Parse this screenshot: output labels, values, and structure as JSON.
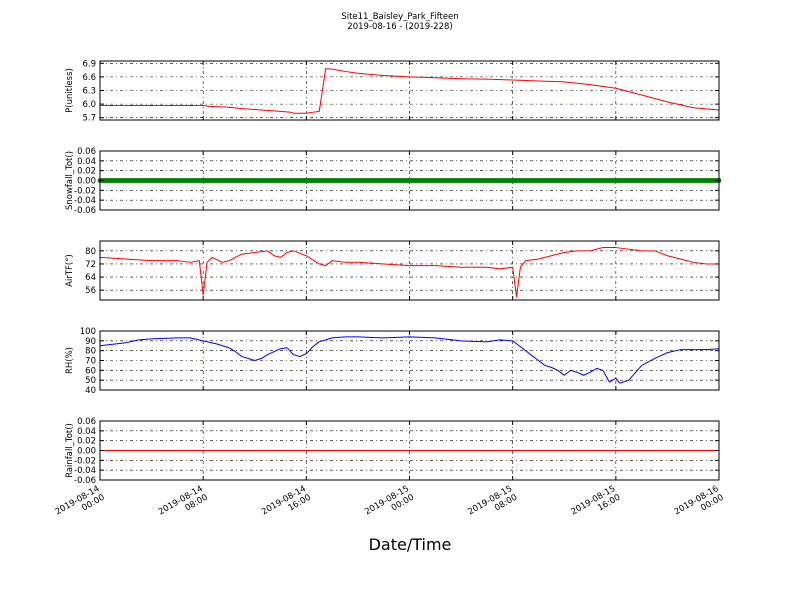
{
  "figure": {
    "title": "Site11_Baisley_Park_Fifteen",
    "subtitle": "2019-08-16 - (2019-228)",
    "xlabel": "Date/Time"
  },
  "chart_data": [
    {
      "type": "line",
      "ylabel": "P(unitless)",
      "ylim": [
        5.65,
        6.95
      ],
      "yticks": [
        "6.9",
        "6.6",
        "6.3",
        "6.0",
        "5.7"
      ],
      "ytick_values": [
        6.9,
        6.6,
        6.3,
        6.0,
        5.7
      ],
      "grid": true,
      "series": [
        {
          "color": "#ff0000",
          "x": [
            0,
            8,
            8.5,
            10,
            11,
            12,
            14,
            14.8,
            15,
            16,
            17,
            17.5,
            18,
            19,
            20,
            22,
            24,
            26,
            28,
            30,
            32,
            34,
            36,
            38,
            40,
            42,
            44,
            46,
            48
          ],
          "y": [
            5.97,
            5.97,
            5.95,
            5.93,
            5.9,
            5.88,
            5.84,
            5.82,
            5.8,
            5.8,
            5.84,
            6.78,
            6.77,
            6.72,
            6.68,
            6.63,
            6.6,
            6.58,
            6.56,
            6.55,
            6.53,
            6.51,
            6.49,
            6.43,
            6.35,
            6.2,
            6.05,
            5.92,
            5.87
          ]
        }
      ]
    },
    {
      "type": "scatter",
      "ylabel": "Snowfall_Tot()",
      "ylim": [
        -0.06,
        0.06
      ],
      "yticks": [
        "0.06",
        "0.04",
        "0.02",
        "0.00",
        "-0.02",
        "-0.04",
        "-0.06"
      ],
      "ytick_values": [
        0.06,
        0.04,
        0.02,
        0.0,
        -0.02,
        -0.04,
        -0.06
      ],
      "grid": true,
      "series": [
        {
          "color": "#008000",
          "x_range": [
            0,
            48
          ],
          "value": 0.0
        }
      ]
    },
    {
      "type": "line",
      "ylabel": "AirTF(°)",
      "ylim": [
        50,
        86
      ],
      "yticks": [
        "80",
        "72",
        "64",
        "56"
      ],
      "ytick_values": [
        80,
        72,
        64,
        56
      ],
      "grid": true,
      "series": [
        {
          "color": "#ff0000",
          "x": [
            0,
            2,
            4,
            6,
            7,
            7.7,
            8,
            8.3,
            8.7,
            9.5,
            10,
            11,
            12,
            13,
            13.5,
            14,
            14.5,
            15,
            16,
            17,
            17.5,
            18,
            19,
            20,
            22,
            24,
            26,
            28,
            30,
            31,
            32,
            32.3,
            32.6,
            33,
            34,
            35,
            36,
            37,
            38,
            39,
            40,
            41,
            42,
            43,
            44,
            45,
            46,
            47,
            48
          ],
          "y": [
            76,
            75,
            74,
            74,
            73,
            74,
            53,
            73,
            76,
            73,
            74,
            78,
            79,
            80,
            77,
            76,
            79,
            80,
            77,
            72,
            71,
            74,
            73,
            73,
            72,
            71,
            71,
            70,
            70,
            69,
            70,
            52,
            70,
            74,
            75,
            77,
            79,
            80,
            80,
            82,
            82,
            81,
            80,
            80,
            77,
            75,
            73,
            72,
            72
          ]
        }
      ]
    },
    {
      "type": "line",
      "ylabel": "RH(%)",
      "ylim": [
        40,
        100
      ],
      "yticks": [
        "100",
        "90",
        "80",
        "70",
        "60",
        "50",
        "40"
      ],
      "ytick_values": [
        100,
        90,
        80,
        70,
        60,
        50,
        40
      ],
      "grid": true,
      "series": [
        {
          "color": "#0000ff",
          "x": [
            0,
            2,
            3,
            4,
            6,
            7,
            8,
            9,
            10,
            10.5,
            11,
            11.5,
            12,
            12.5,
            13,
            14,
            14.5,
            15,
            15.5,
            16,
            16.5,
            17,
            18,
            19,
            20,
            22,
            24,
            26,
            28,
            30,
            31,
            32,
            32.5,
            33,
            34,
            34.5,
            35,
            35.5,
            36,
            36.5,
            37,
            37.5,
            38,
            38.5,
            39,
            39.5,
            40,
            40.3,
            41,
            42,
            43,
            44,
            45,
            46,
            47,
            48
          ],
          "y": [
            85,
            88,
            91,
            92,
            93,
            93,
            90,
            87,
            83,
            79,
            74,
            72,
            70,
            72,
            76,
            82,
            83,
            76,
            74,
            77,
            84,
            89,
            93,
            94,
            94,
            93,
            94,
            93,
            90,
            89,
            91,
            90,
            85,
            80,
            70,
            65,
            63,
            60,
            55,
            60,
            58,
            55,
            58,
            62,
            60,
            48,
            52,
            47,
            50,
            65,
            72,
            78,
            81,
            81,
            81,
            82
          ]
        }
      ]
    },
    {
      "type": "line",
      "ylabel": "Rainfall_Tot()",
      "ylim": [
        -0.06,
        0.06
      ],
      "yticks": [
        "0.06",
        "0.04",
        "0.02",
        "0.00",
        "-0.02",
        "-0.04",
        "-0.06"
      ],
      "ytick_values": [
        0.06,
        0.04,
        0.02,
        0.0,
        -0.02,
        -0.04,
        -0.06
      ],
      "grid": true,
      "series": [
        {
          "color": "#ff0000",
          "x": [
            0,
            48
          ],
          "y": [
            0.0,
            0.0
          ]
        }
      ]
    }
  ],
  "x_axis": {
    "range": [
      0,
      48
    ],
    "tick_values": [
      0,
      8,
      16,
      24,
      32,
      40,
      48
    ],
    "tick_labels": [
      [
        "2019-08-14",
        "00:00"
      ],
      [
        "2019-08-14",
        "08:00"
      ],
      [
        "2019-08-14",
        "16:00"
      ],
      [
        "2019-08-15",
        "00:00"
      ],
      [
        "2019-08-15",
        "08:00"
      ],
      [
        "2019-08-15",
        "16:00"
      ],
      [
        "2019-08-16",
        "00:00"
      ]
    ]
  }
}
